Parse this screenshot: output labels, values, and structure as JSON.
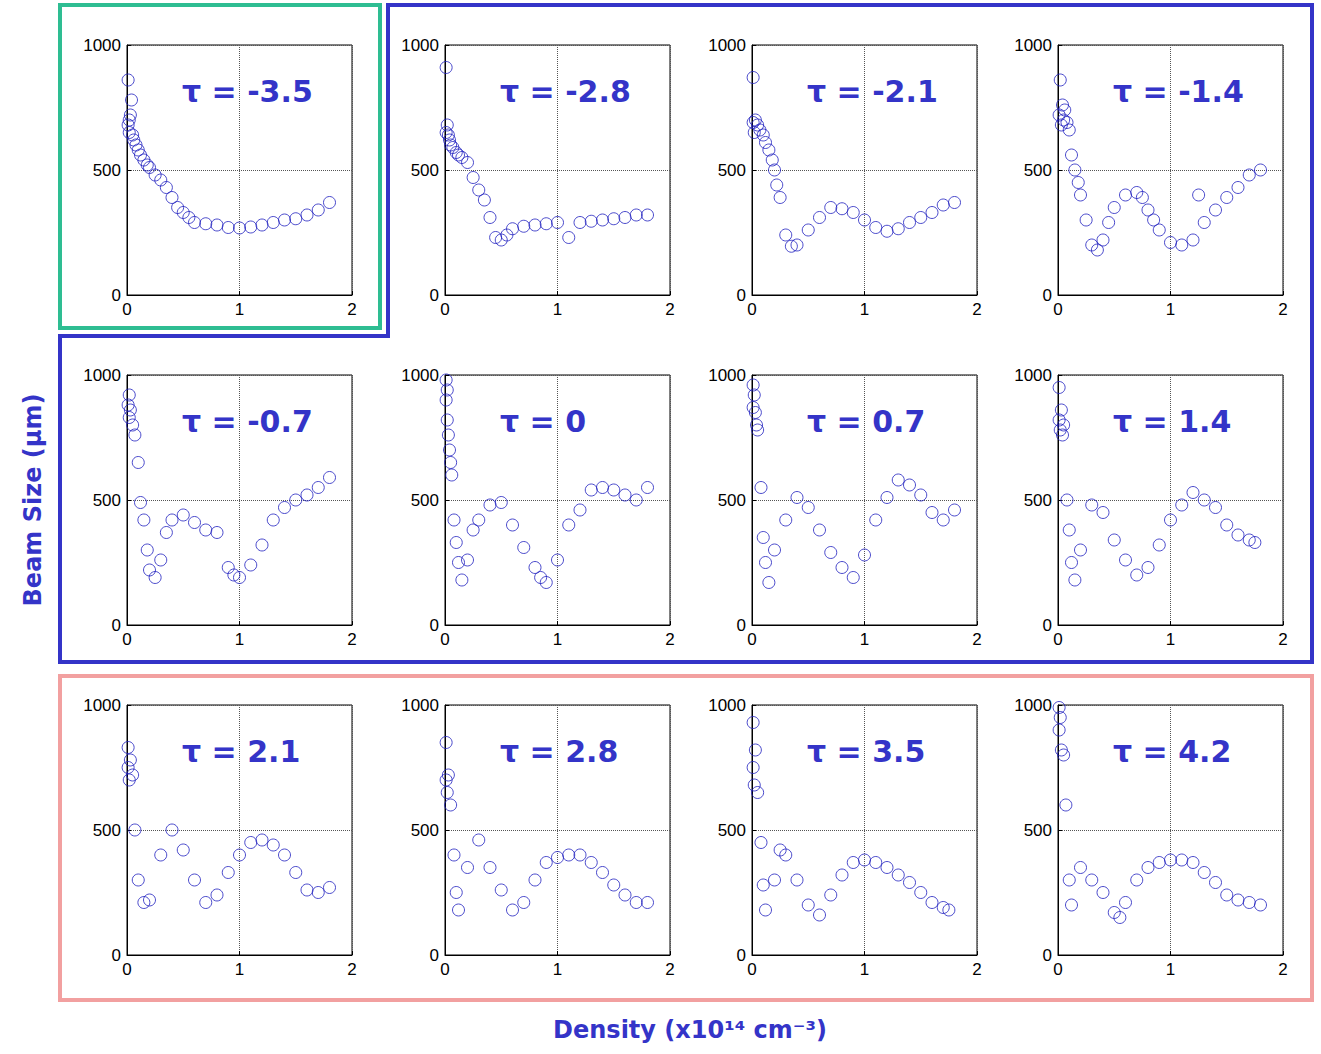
{
  "xlabel": "Density (x10¹⁴ cm⁻³)",
  "ylabel": "Beam Size (μm)",
  "chart_data": [
    {
      "type": "scatter",
      "title": "τ = -3.5",
      "color": "#1f1fbf",
      "marker": "circle_open",
      "grid": true,
      "xlim": [
        0,
        2
      ],
      "xticks": [
        0,
        1,
        2
      ],
      "ylim": [
        0,
        1000
      ],
      "yticks": [
        0,
        500,
        1000
      ],
      "x": [
        0.01,
        0.01,
        0.02,
        0.02,
        0.03,
        0.04,
        0.05,
        0.06,
        0.08,
        0.1,
        0.12,
        0.15,
        0.18,
        0.2,
        0.25,
        0.3,
        0.35,
        0.4,
        0.45,
        0.5,
        0.55,
        0.6,
        0.7,
        0.8,
        0.9,
        1.0,
        1.1,
        1.2,
        1.3,
        1.4,
        1.5,
        1.6,
        1.7,
        1.8
      ],
      "values": [
        680,
        860,
        700,
        650,
        720,
        780,
        640,
        620,
        600,
        580,
        560,
        540,
        520,
        510,
        480,
        460,
        430,
        390,
        350,
        330,
        310,
        290,
        285,
        280,
        270,
        268,
        272,
        280,
        290,
        300,
        305,
        320,
        340,
        370
      ]
    },
    {
      "type": "scatter",
      "title": "τ = -2.8",
      "color": "#1f1fbf",
      "marker": "circle_open",
      "grid": true,
      "xlim": [
        0,
        2
      ],
      "xticks": [
        0,
        1,
        2
      ],
      "ylim": [
        0,
        1000
      ],
      "yticks": [
        0,
        500,
        1000
      ],
      "x": [
        0.01,
        0.01,
        0.02,
        0.03,
        0.04,
        0.05,
        0.07,
        0.1,
        0.12,
        0.15,
        0.2,
        0.25,
        0.3,
        0.35,
        0.4,
        0.45,
        0.5,
        0.55,
        0.6,
        0.7,
        0.8,
        0.9,
        1.0,
        1.1,
        1.2,
        1.3,
        1.4,
        1.5,
        1.6,
        1.7,
        1.8
      ],
      "values": [
        650,
        910,
        680,
        640,
        620,
        600,
        590,
        570,
        560,
        550,
        530,
        470,
        420,
        380,
        310,
        230,
        220,
        240,
        265,
        275,
        280,
        285,
        290,
        230,
        290,
        295,
        300,
        305,
        310,
        320,
        320
      ]
    },
    {
      "type": "scatter",
      "title": "τ = -2.1",
      "color": "#1f1fbf",
      "marker": "circle_open",
      "grid": true,
      "xlim": [
        0,
        2
      ],
      "xticks": [
        0,
        1,
        2
      ],
      "ylim": [
        0,
        1000
      ],
      "yticks": [
        0,
        500,
        1000
      ],
      "x": [
        0.01,
        0.01,
        0.02,
        0.03,
        0.05,
        0.07,
        0.1,
        0.12,
        0.15,
        0.18,
        0.2,
        0.22,
        0.25,
        0.3,
        0.35,
        0.4,
        0.5,
        0.6,
        0.7,
        0.8,
        0.9,
        1.0,
        1.1,
        1.2,
        1.3,
        1.4,
        1.5,
        1.6,
        1.7,
        1.8
      ],
      "values": [
        690,
        870,
        650,
        700,
        680,
        660,
        640,
        610,
        580,
        540,
        500,
        440,
        390,
        240,
        195,
        200,
        260,
        310,
        350,
        345,
        330,
        300,
        270,
        255,
        265,
        290,
        310,
        330,
        360,
        370
      ]
    },
    {
      "type": "scatter",
      "title": "τ = -1.4",
      "color": "#1f1fbf",
      "marker": "circle_open",
      "grid": true,
      "xlim": [
        0,
        2
      ],
      "xticks": [
        0,
        1,
        2
      ],
      "ylim": [
        0,
        1000
      ],
      "yticks": [
        0,
        500,
        1000
      ],
      "x": [
        0.01,
        0.02,
        0.03,
        0.04,
        0.05,
        0.06,
        0.08,
        0.1,
        0.12,
        0.15,
        0.18,
        0.2,
        0.25,
        0.3,
        0.35,
        0.4,
        0.45,
        0.5,
        0.6,
        0.7,
        0.75,
        0.8,
        0.85,
        0.9,
        1.0,
        1.1,
        1.2,
        1.25,
        1.3,
        1.4,
        1.5,
        1.6,
        1.7,
        1.8
      ],
      "values": [
        720,
        860,
        680,
        760,
        700,
        740,
        690,
        660,
        560,
        500,
        450,
        400,
        300,
        200,
        180,
        220,
        290,
        350,
        400,
        410,
        390,
        340,
        300,
        260,
        210,
        200,
        220,
        400,
        290,
        340,
        390,
        430,
        480,
        500
      ]
    },
    {
      "type": "scatter",
      "title": "τ = -0.7",
      "color": "#1f1fbf",
      "marker": "circle_open",
      "grid": true,
      "xlim": [
        0,
        2
      ],
      "xticks": [
        0,
        1,
        2
      ],
      "ylim": [
        0,
        1000
      ],
      "yticks": [
        0,
        500,
        1000
      ],
      "x": [
        0.01,
        0.02,
        0.02,
        0.03,
        0.05,
        0.07,
        0.1,
        0.12,
        0.15,
        0.18,
        0.2,
        0.25,
        0.3,
        0.35,
        0.4,
        0.5,
        0.6,
        0.7,
        0.8,
        0.9,
        0.95,
        1.0,
        1.1,
        1.2,
        1.3,
        1.4,
        1.5,
        1.6,
        1.7,
        1.8
      ],
      "values": [
        880,
        920,
        830,
        860,
        800,
        760,
        650,
        490,
        420,
        300,
        220,
        190,
        260,
        370,
        420,
        440,
        410,
        380,
        370,
        230,
        200,
        190,
        240,
        320,
        420,
        470,
        500,
        520,
        550,
        590
      ]
    },
    {
      "type": "scatter",
      "title": "τ = 0",
      "color": "#1f1fbf",
      "marker": "circle_open",
      "grid": true,
      "xlim": [
        0,
        2
      ],
      "xticks": [
        0,
        1,
        2
      ],
      "ylim": [
        0,
        1000
      ],
      "yticks": [
        0,
        500,
        1000
      ],
      "x": [
        0.01,
        0.01,
        0.02,
        0.02,
        0.03,
        0.04,
        0.05,
        0.06,
        0.08,
        0.1,
        0.12,
        0.15,
        0.2,
        0.25,
        0.3,
        0.4,
        0.5,
        0.6,
        0.7,
        0.8,
        0.85,
        0.9,
        1.0,
        1.1,
        1.2,
        1.3,
        1.4,
        1.5,
        1.6,
        1.7,
        1.8
      ],
      "values": [
        980,
        900,
        940,
        820,
        760,
        700,
        650,
        600,
        420,
        330,
        250,
        180,
        260,
        380,
        420,
        480,
        490,
        400,
        310,
        230,
        190,
        170,
        260,
        400,
        460,
        540,
        550,
        540,
        520,
        500,
        550
      ]
    },
    {
      "type": "scatter",
      "title": "τ = 0.7",
      "color": "#1f1fbf",
      "marker": "circle_open",
      "grid": true,
      "xlim": [
        0,
        2
      ],
      "xticks": [
        0,
        1,
        2
      ],
      "ylim": [
        0,
        1000
      ],
      "yticks": [
        0,
        500,
        1000
      ],
      "x": [
        0.01,
        0.01,
        0.02,
        0.03,
        0.04,
        0.05,
        0.08,
        0.1,
        0.12,
        0.15,
        0.2,
        0.3,
        0.4,
        0.5,
        0.6,
        0.7,
        0.8,
        0.9,
        1.0,
        1.1,
        1.2,
        1.3,
        1.4,
        1.5,
        1.6,
        1.7,
        1.8
      ],
      "values": [
        960,
        870,
        920,
        850,
        800,
        780,
        550,
        350,
        250,
        170,
        300,
        420,
        510,
        470,
        380,
        290,
        230,
        190,
        280,
        420,
        510,
        580,
        560,
        520,
        450,
        420,
        460
      ]
    },
    {
      "type": "scatter",
      "title": "τ = 1.4",
      "color": "#1f1fbf",
      "marker": "circle_open",
      "grid": true,
      "xlim": [
        0,
        2
      ],
      "xticks": [
        0,
        1,
        2
      ],
      "ylim": [
        0,
        1000
      ],
      "yticks": [
        0,
        500,
        1000
      ],
      "x": [
        0.01,
        0.01,
        0.02,
        0.03,
        0.04,
        0.05,
        0.08,
        0.1,
        0.12,
        0.15,
        0.2,
        0.3,
        0.4,
        0.5,
        0.6,
        0.7,
        0.8,
        0.9,
        1.0,
        1.1,
        1.2,
        1.3,
        1.4,
        1.5,
        1.6,
        1.7,
        1.75
      ],
      "values": [
        950,
        820,
        780,
        860,
        760,
        800,
        500,
        380,
        250,
        180,
        300,
        480,
        450,
        340,
        260,
        200,
        230,
        320,
        420,
        480,
        530,
        500,
        470,
        400,
        360,
        340,
        330
      ]
    },
    {
      "type": "scatter",
      "title": "τ = 2.1",
      "color": "#1f1fbf",
      "marker": "circle_open",
      "grid": true,
      "xlim": [
        0,
        2
      ],
      "xticks": [
        0,
        1,
        2
      ],
      "ylim": [
        0,
        1000
      ],
      "yticks": [
        0,
        500,
        1000
      ],
      "x": [
        0.01,
        0.01,
        0.02,
        0.03,
        0.05,
        0.07,
        0.1,
        0.15,
        0.2,
        0.3,
        0.4,
        0.5,
        0.6,
        0.7,
        0.8,
        0.9,
        1.0,
        1.1,
        1.2,
        1.3,
        1.4,
        1.5,
        1.6,
        1.7,
        1.8
      ],
      "values": [
        750,
        830,
        700,
        780,
        720,
        500,
        300,
        210,
        220,
        400,
        500,
        420,
        300,
        210,
        240,
        330,
        400,
        450,
        460,
        440,
        400,
        330,
        260,
        250,
        270
      ]
    },
    {
      "type": "scatter",
      "title": "τ = 2.8",
      "color": "#1f1fbf",
      "marker": "circle_open",
      "grid": true,
      "xlim": [
        0,
        2
      ],
      "xticks": [
        0,
        1,
        2
      ],
      "ylim": [
        0,
        1000
      ],
      "yticks": [
        0,
        500,
        1000
      ],
      "x": [
        0.01,
        0.01,
        0.02,
        0.03,
        0.05,
        0.08,
        0.1,
        0.12,
        0.2,
        0.3,
        0.4,
        0.5,
        0.6,
        0.7,
        0.8,
        0.9,
        1.0,
        1.1,
        1.2,
        1.3,
        1.4,
        1.5,
        1.6,
        1.7,
        1.8
      ],
      "values": [
        700,
        850,
        650,
        720,
        600,
        400,
        250,
        180,
        350,
        460,
        350,
        260,
        180,
        210,
        300,
        370,
        390,
        400,
        400,
        370,
        330,
        280,
        240,
        210,
        210
      ]
    },
    {
      "type": "scatter",
      "title": "τ = 3.5",
      "color": "#1f1fbf",
      "marker": "circle_open",
      "grid": true,
      "xlim": [
        0,
        2
      ],
      "xticks": [
        0,
        1,
        2
      ],
      "ylim": [
        0,
        1000
      ],
      "yticks": [
        0,
        500,
        1000
      ],
      "x": [
        0.01,
        0.01,
        0.02,
        0.03,
        0.05,
        0.08,
        0.1,
        0.12,
        0.2,
        0.25,
        0.3,
        0.4,
        0.5,
        0.6,
        0.7,
        0.8,
        0.9,
        1.0,
        1.1,
        1.2,
        1.3,
        1.4,
        1.5,
        1.6,
        1.7,
        1.75
      ],
      "values": [
        750,
        930,
        680,
        820,
        650,
        450,
        280,
        180,
        300,
        420,
        400,
        300,
        200,
        160,
        240,
        320,
        370,
        380,
        370,
        350,
        320,
        290,
        250,
        210,
        190,
        180
      ]
    },
    {
      "type": "scatter",
      "title": "τ = 4.2",
      "color": "#1f1fbf",
      "marker": "circle_open",
      "grid": true,
      "xlim": [
        0,
        2
      ],
      "xticks": [
        0,
        1,
        2
      ],
      "ylim": [
        0,
        1000
      ],
      "yticks": [
        0,
        500,
        1000
      ],
      "x": [
        0.01,
        0.01,
        0.02,
        0.03,
        0.05,
        0.07,
        0.1,
        0.12,
        0.2,
        0.3,
        0.4,
        0.5,
        0.55,
        0.6,
        0.7,
        0.8,
        0.9,
        1.0,
        1.1,
        1.2,
        1.3,
        1.4,
        1.5,
        1.6,
        1.7,
        1.8
      ],
      "values": [
        990,
        900,
        950,
        820,
        800,
        600,
        300,
        200,
        350,
        300,
        250,
        170,
        150,
        210,
        300,
        350,
        370,
        380,
        380,
        370,
        330,
        290,
        240,
        220,
        210,
        200
      ]
    }
  ]
}
